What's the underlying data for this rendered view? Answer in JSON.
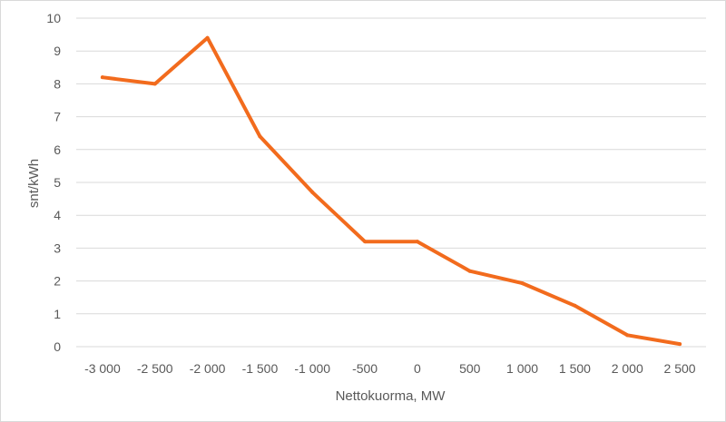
{
  "chart_data": {
    "type": "line",
    "title": "",
    "xlabel": "Nettokuorma, MW",
    "ylabel": "snt/kWh",
    "categories": [
      "-3 000",
      "-2 500",
      "-2 000",
      "-1 500",
      "-1 000",
      "-500",
      "0",
      "500",
      "1 000",
      "1 500",
      "2 000",
      "2 500"
    ],
    "x": [
      -3000,
      -2500,
      -2000,
      -1500,
      -1000,
      -500,
      0,
      500,
      1000,
      1500,
      2000,
      2500
    ],
    "series": [
      {
        "values": [
          8.2,
          8.0,
          9.4,
          6.4,
          4.7,
          3.2,
          3.2,
          2.3,
          1.93,
          1.25,
          0.35,
          0.08
        ],
        "color": "#f26b1d"
      }
    ],
    "ylim": [
      0,
      10
    ],
    "yticks": [
      "0",
      "1",
      "2",
      "3",
      "4",
      "5",
      "6",
      "7",
      "8",
      "9",
      "10"
    ],
    "grid": "horizontal",
    "legend": "none"
  }
}
